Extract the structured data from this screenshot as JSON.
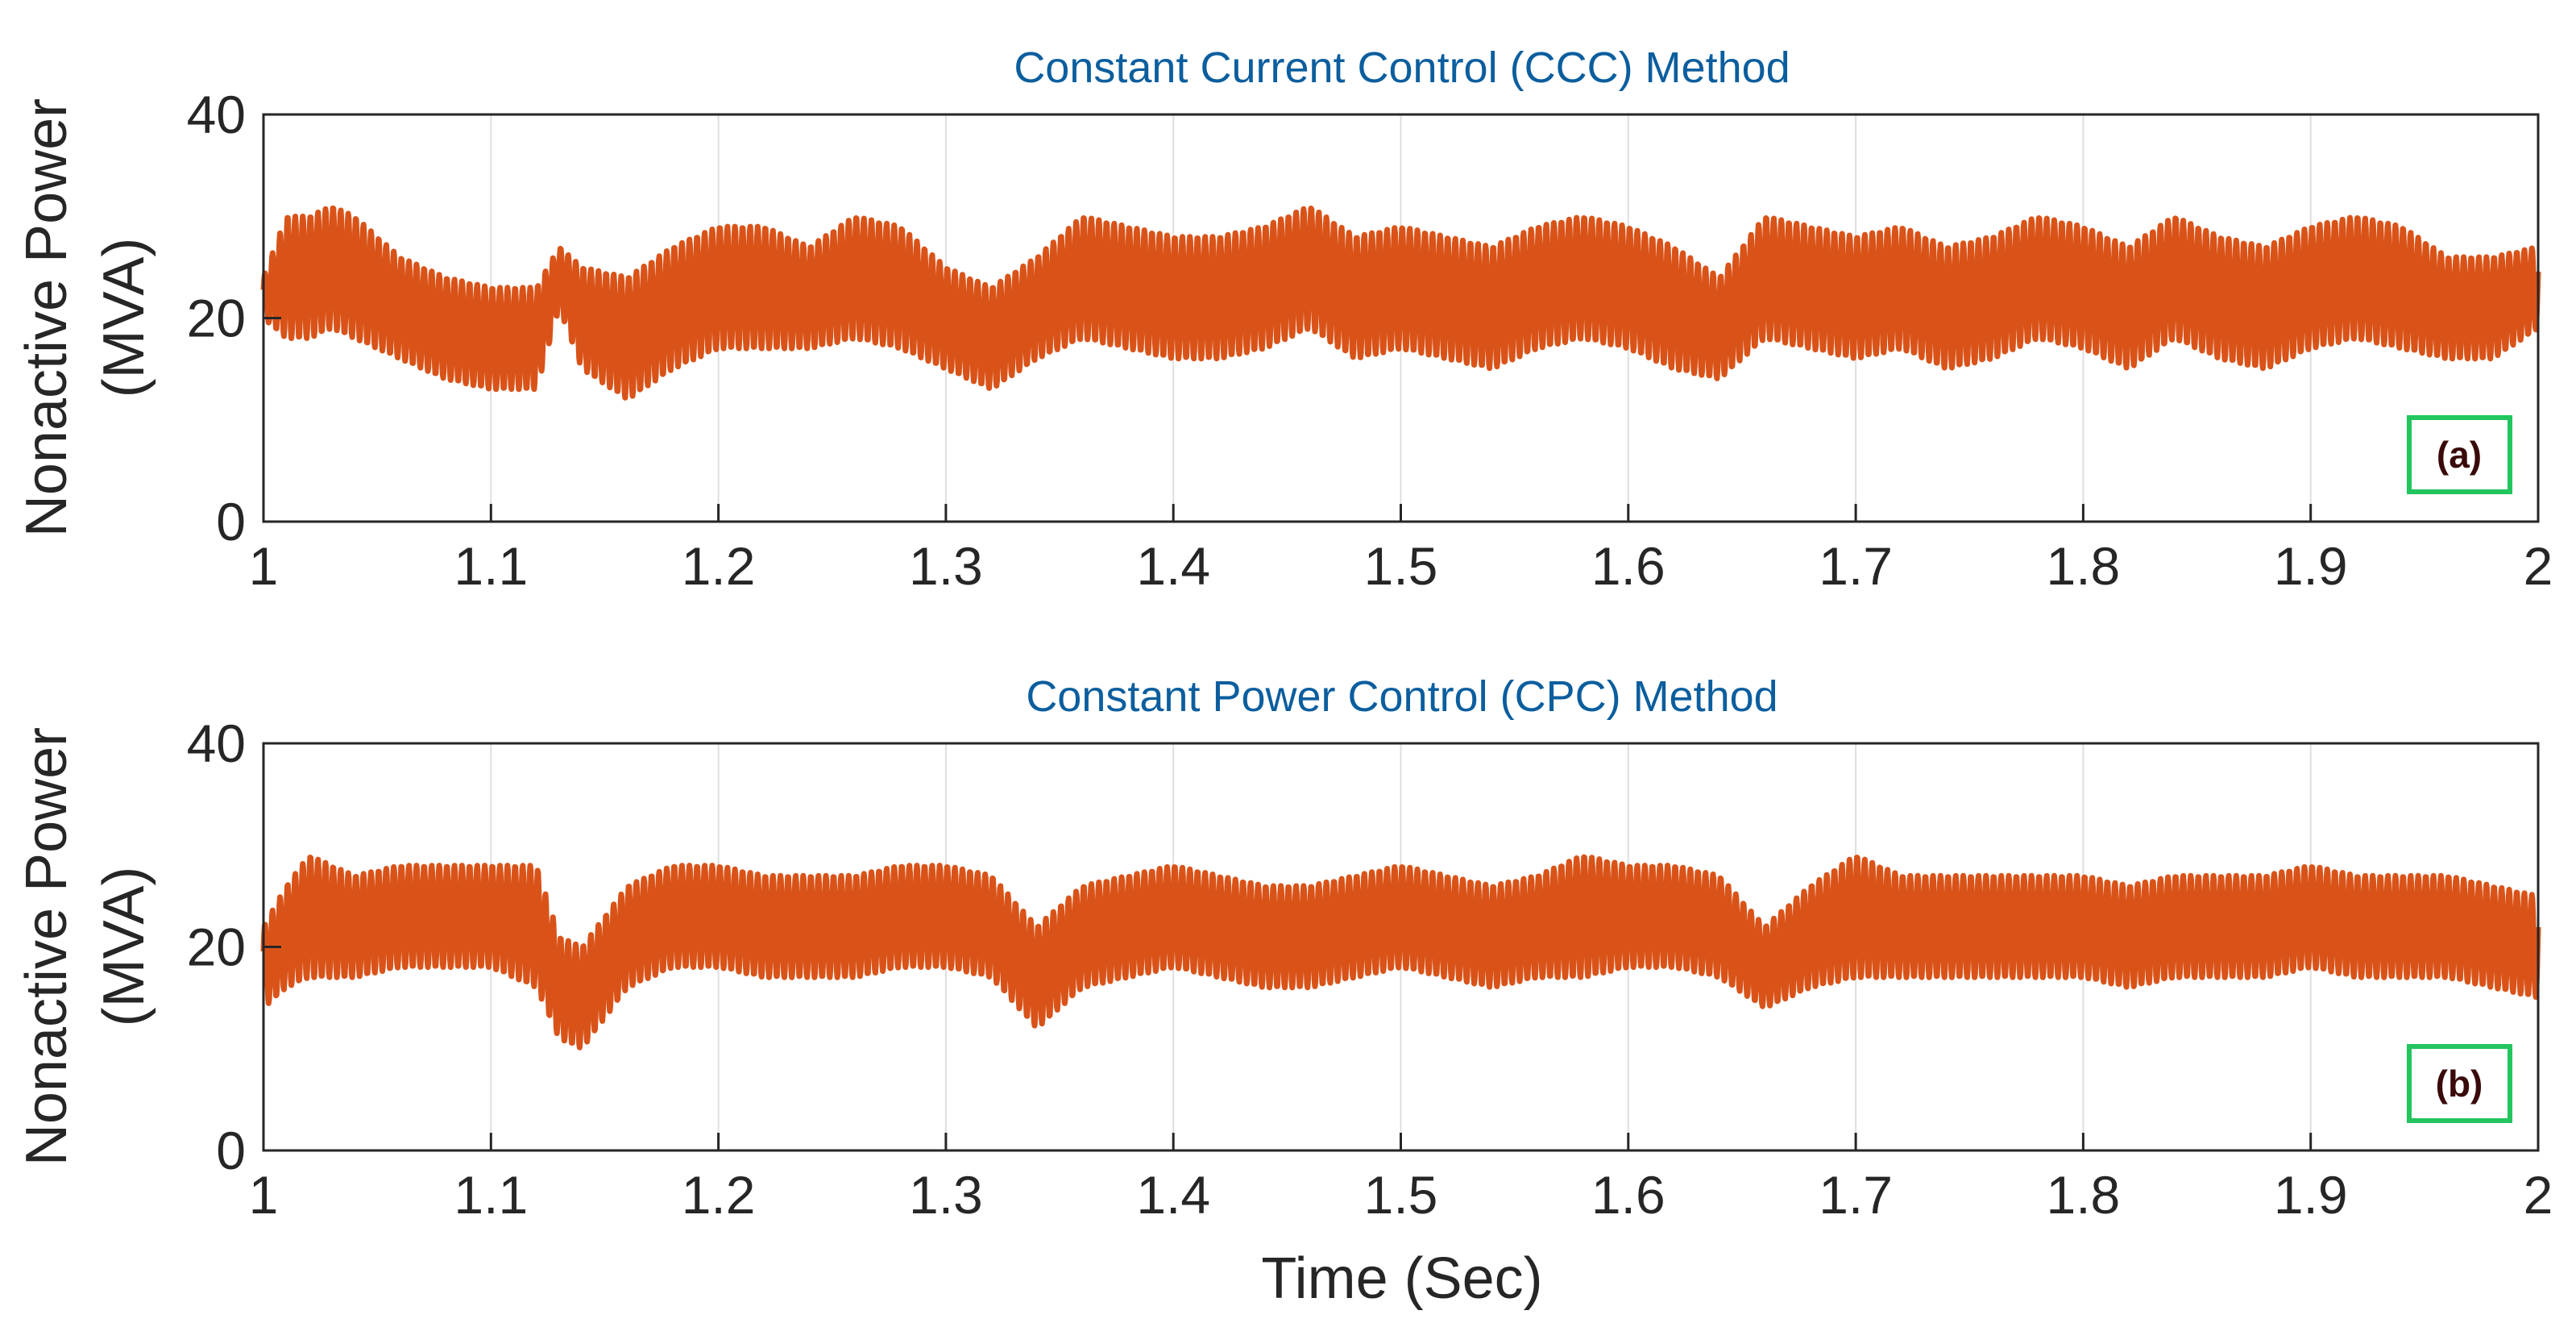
{
  "chart_data": [
    {
      "type": "line",
      "title": "Constant Current Control (CCC) Method",
      "ylabel_line1": "Nonactive Power",
      "ylabel_line2": "(MVA)",
      "xlabel": "",
      "xlim": [
        1,
        2
      ],
      "ylim": [
        0,
        40
      ],
      "xticks": [
        "1",
        "1.1",
        "1.2",
        "1.3",
        "1.4",
        "1.5",
        "1.6",
        "1.7",
        "1.8",
        "1.9",
        "2"
      ],
      "yticks": [
        "0",
        "20",
        "40"
      ],
      "grid": "vertical",
      "panel_tag": "(a)",
      "series": [
        {
          "name": "Nonactive Power",
          "color": "#D95319",
          "osc_freq_hz": 300,
          "center_x": [
            1.0,
            1.01,
            1.02,
            1.03,
            1.04,
            1.06,
            1.08,
            1.1,
            1.12,
            1.13,
            1.14,
            1.16,
            1.18,
            1.2,
            1.22,
            1.24,
            1.26,
            1.28,
            1.3,
            1.32,
            1.34,
            1.36,
            1.38,
            1.4,
            1.42,
            1.44,
            1.46,
            1.48,
            1.5,
            1.52,
            1.54,
            1.56,
            1.58,
            1.6,
            1.62,
            1.64,
            1.66,
            1.68,
            1.7,
            1.72,
            1.74,
            1.76,
            1.78,
            1.8,
            1.82,
            1.84,
            1.86,
            1.88,
            1.9,
            1.92,
            1.94,
            1.96,
            1.98,
            2.0
          ],
          "center_y": [
            22,
            24,
            24,
            25,
            24,
            21,
            19,
            18,
            18,
            24,
            20,
            18,
            21,
            23,
            23,
            22,
            24,
            23,
            20,
            18,
            21,
            24,
            23,
            22,
            22,
            23,
            25,
            22,
            23,
            22,
            21,
            23,
            24,
            23,
            21,
            19,
            24,
            23,
            22,
            23,
            21,
            22,
            24,
            23,
            21,
            24,
            22,
            21,
            23,
            24,
            23,
            21,
            21,
            23
          ],
          "amp_y": [
            2,
            6,
            6,
            6,
            6,
            5,
            5,
            5,
            5,
            3,
            5,
            6,
            6,
            6,
            6,
            5,
            6,
            6,
            5,
            5,
            5,
            6,
            6,
            6,
            6,
            6,
            6,
            6,
            6,
            6,
            6,
            6,
            6,
            6,
            6,
            5,
            6,
            6,
            6,
            6,
            6,
            6,
            6,
            6,
            6,
            6,
            6,
            6,
            6,
            6,
            6,
            5,
            5,
            4
          ]
        }
      ]
    },
    {
      "type": "line",
      "title": "Constant Power Control (CPC) Method",
      "ylabel_line1": "Nonactive Power",
      "ylabel_line2": "(MVA)",
      "xlabel": "Time (Sec)",
      "xlim": [
        1,
        2
      ],
      "ylim": [
        0,
        40
      ],
      "xticks": [
        "1",
        "1.1",
        "1.2",
        "1.3",
        "1.4",
        "1.5",
        "1.6",
        "1.7",
        "1.8",
        "1.9",
        "2"
      ],
      "yticks": [
        "0",
        "20",
        "40"
      ],
      "grid": "vertical",
      "panel_tag": "(b)",
      "series": [
        {
          "name": "Nonactive Power",
          "color": "#D95319",
          "osc_freq_hz": 300,
          "center_x": [
            1.0,
            1.01,
            1.02,
            1.04,
            1.06,
            1.08,
            1.1,
            1.12,
            1.13,
            1.14,
            1.16,
            1.18,
            1.2,
            1.22,
            1.24,
            1.26,
            1.28,
            1.3,
            1.32,
            1.34,
            1.36,
            1.38,
            1.4,
            1.42,
            1.44,
            1.46,
            1.48,
            1.5,
            1.52,
            1.54,
            1.56,
            1.58,
            1.6,
            1.62,
            1.64,
            1.66,
            1.68,
            1.7,
            1.72,
            1.74,
            1.76,
            1.78,
            1.8,
            1.82,
            1.84,
            1.86,
            1.88,
            1.9,
            1.92,
            1.94,
            1.96,
            1.98,
            2.0
          ],
          "center_y": [
            18,
            21,
            23,
            22,
            23,
            23,
            23,
            22,
            16,
            15,
            21,
            23,
            23,
            22,
            22,
            22,
            23,
            23,
            22,
            17,
            21,
            22,
            23,
            22,
            21,
            21,
            22,
            23,
            22,
            21,
            22,
            23,
            23,
            23,
            22,
            18,
            21,
            23,
            22,
            22,
            22,
            22,
            22,
            21,
            22,
            22,
            22,
            23,
            22,
            22,
            22,
            21,
            20
          ],
          "amp_y": [
            4,
            5,
            6,
            5,
            5,
            5,
            5,
            6,
            5,
            5,
            5,
            5,
            5,
            5,
            5,
            5,
            5,
            5,
            5,
            5,
            5,
            5,
            5,
            5,
            5,
            5,
            5,
            5,
            5,
            5,
            5,
            6,
            5,
            5,
            5,
            4,
            5,
            6,
            5,
            5,
            5,
            5,
            5,
            5,
            5,
            5,
            5,
            5,
            5,
            5,
            5,
            5,
            5
          ]
        }
      ]
    }
  ],
  "colors": {
    "title": "#0B5E9E",
    "line": "#D95319",
    "tag_box": "#22C55E",
    "axis": "#262626",
    "grid": "#DFDFDF"
  }
}
